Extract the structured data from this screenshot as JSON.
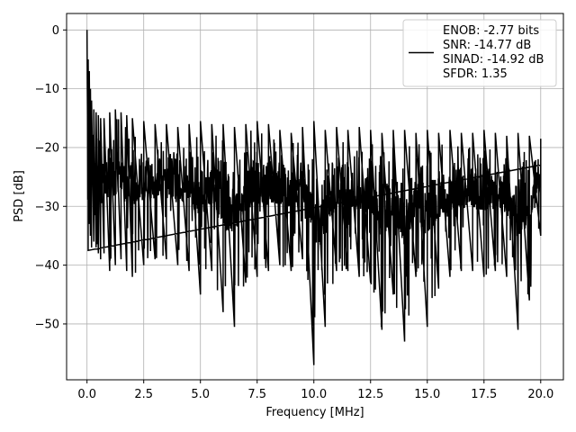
{
  "chart_data": {
    "type": "line",
    "title": "",
    "xlabel": "Frequency [MHz]",
    "ylabel": "PSD [dB]",
    "xlim": [
      -0.9,
      21.0
    ],
    "ylim": [
      -59.5,
      2.8
    ],
    "xticks": [
      0.0,
      2.5,
      5.0,
      7.5,
      10.0,
      12.5,
      15.0,
      17.5,
      20.0
    ],
    "xtick_labels": [
      "0.0",
      "2.5",
      "5.0",
      "7.5",
      "10.0",
      "12.5",
      "15.0",
      "17.5",
      "20.0"
    ],
    "yticks": [
      0,
      -10,
      -20,
      -30,
      -40,
      -50
    ],
    "ytick_labels": [
      "0",
      "−10",
      "−20",
      "−30",
      "−40",
      "−50"
    ],
    "grid": true,
    "legend_position": "top-right",
    "legend_entries": [
      "ENOB: -2.77 bits",
      "SNR: -14.77 dB",
      "SINAD: -14.92 dB",
      "SFDR: 1.35"
    ],
    "series": [
      {
        "color": "#000000",
        "x": [
          0.0,
          0.05,
          0.1,
          0.15,
          0.2,
          0.3,
          0.4,
          0.5,
          0.6,
          0.75,
          1.0,
          1.25,
          1.5,
          1.75,
          2.0,
          2.5,
          3.0,
          3.5,
          4.0,
          4.5,
          5.0,
          5.5,
          6.0,
          6.5,
          7.0,
          7.5,
          8.0,
          8.5,
          9.0,
          9.5,
          10.0,
          10.5,
          11.0,
          11.5,
          12.0,
          12.5,
          13.0,
          13.5,
          14.0,
          14.5,
          15.0,
          15.5,
          16.0,
          16.5,
          17.0,
          17.5,
          18.0,
          18.5,
          19.0,
          19.5,
          20.0
        ],
        "upper": [
          0.0,
          -5.0,
          -7.0,
          -10.0,
          -12.0,
          -13.5,
          -14.0,
          -14.5,
          -15.0,
          -15.0,
          -14.0,
          -13.5,
          -14.0,
          -14.5,
          -15.0,
          -15.5,
          -16.0,
          -16.0,
          -16.5,
          -16.0,
          -15.5,
          -16.0,
          -16.0,
          -16.5,
          -16.0,
          -15.5,
          -16.0,
          -17.0,
          -17.5,
          -16.5,
          -15.5,
          -17.0,
          -16.5,
          -17.0,
          -16.5,
          -17.0,
          -17.5,
          -17.0,
          -17.0,
          -17.5,
          -17.0,
          -17.5,
          -17.0,
          -17.5,
          -17.5,
          -17.0,
          -17.5,
          -18.0,
          -17.5,
          -18.0,
          -18.5
        ],
        "lower": [
          -13.0,
          -37.5,
          -33.0,
          -35.0,
          -37.0,
          -36.0,
          -37.0,
          -38.0,
          -39.0,
          -38.0,
          -41.0,
          -40.0,
          -39.0,
          -41.0,
          -42.0,
          -40.0,
          -39.0,
          -39.0,
          -40.0,
          -41.0,
          -45.0,
          -41.0,
          -48.0,
          -50.5,
          -43.0,
          -42.0,
          -41.0,
          -40.0,
          -41.0,
          -39.0,
          -57.0,
          -50.5,
          -41.0,
          -41.0,
          -42.0,
          -43.0,
          -51.0,
          -45.0,
          -53.0,
          -42.0,
          -50.5,
          -44.0,
          -42.0,
          -41.0,
          -41.0,
          -42.0,
          -41.0,
          -42.0,
          -51.0,
          -46.0,
          -35.0
        ],
        "points_drawn": 1600,
        "seed": 17
      }
    ]
  }
}
